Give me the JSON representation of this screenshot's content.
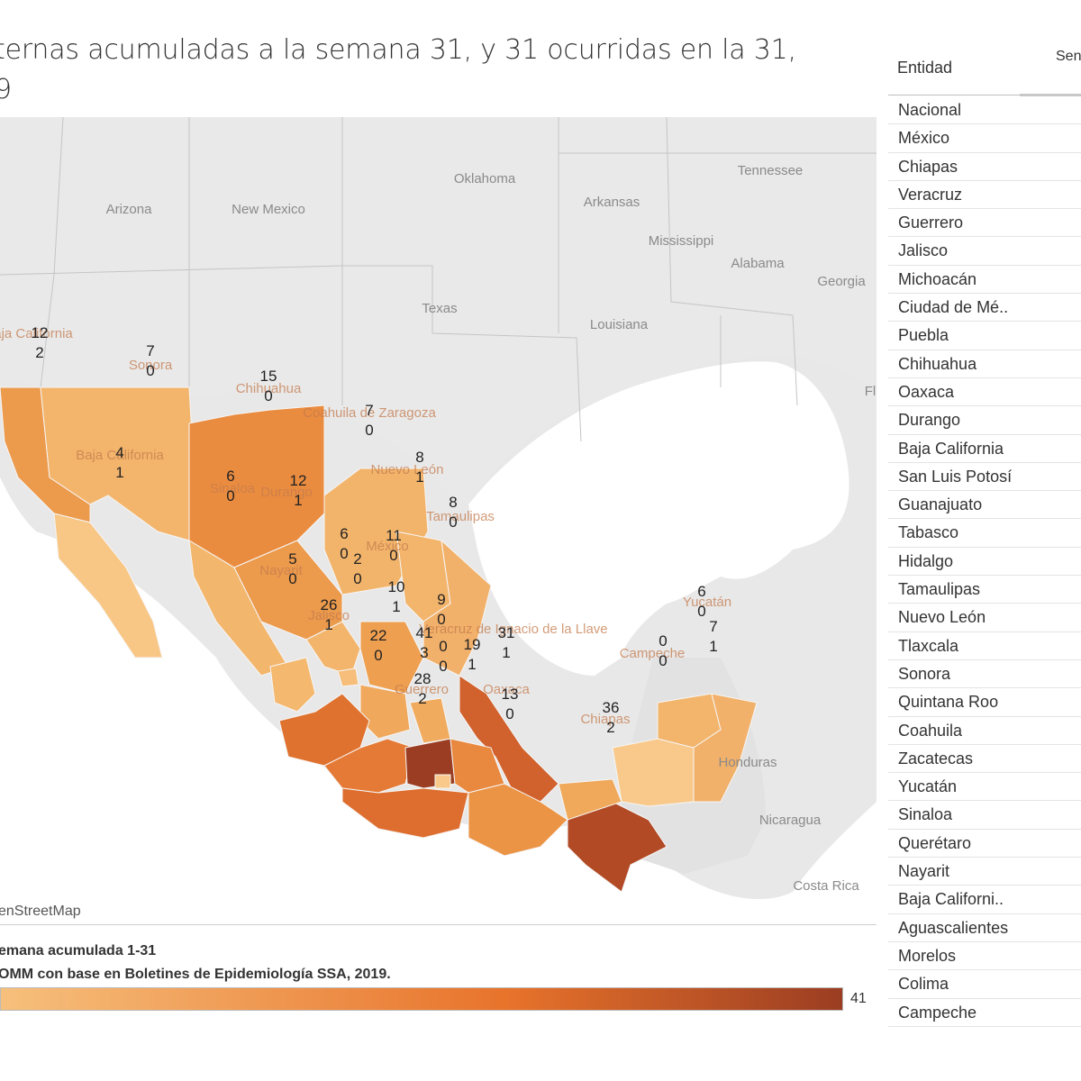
{
  "header": {
    "title": "ternas acumuladas a la semana 31, y 31 ocurridas en la 31,\n9"
  },
  "map": {
    "attribution": "enStreetMap",
    "us_states": [
      "Arizona",
      "New Mexico",
      "Oklahoma",
      "Arkansas",
      "Tennessee",
      "Texas",
      "Mississippi",
      "Alabama",
      "Georgia",
      "Louisiana",
      "Fl"
    ],
    "central_america": [
      "Honduras",
      "Nicaragua",
      "Costa Rica"
    ],
    "mx_state_names": [
      "Baja California",
      "Baja California",
      "Sonora",
      "Chihuahua",
      "Coahuila de Zaragoza",
      "Nuevo León",
      "Durango",
      "Sinaloa",
      "Tamaulipas",
      "México",
      "Nayarit",
      "Jalisco",
      "Guerrero",
      "Oaxaca",
      "Chiapas",
      "Yucatán",
      "Campeche",
      "Veracruz de Ignacio de la Llave"
    ],
    "colors": {
      "min": "#f6c07c",
      "mid": "#e8732b",
      "max": "#9b3d22"
    },
    "state_values": [
      {
        "state": "Baja California",
        "acum": 12,
        "week31": 2
      },
      {
        "state": "Sonora",
        "acum": 7,
        "week31": 0
      },
      {
        "state": "Chihuahua",
        "acum": 15,
        "week31": 0
      },
      {
        "state": "Coahuila",
        "acum": 7,
        "week31": 0
      },
      {
        "state": "Baja California Sur",
        "acum": 4,
        "week31": 1
      },
      {
        "state": "Nuevo León",
        "acum": 8,
        "week31": 1
      },
      {
        "state": "Sinaloa",
        "acum": 6,
        "week31": 0
      },
      {
        "state": "Durango",
        "acum": 12,
        "week31": 1
      },
      {
        "state": "Tamaulipas",
        "acum": 8,
        "week31": 0
      },
      {
        "state": "Zacatecas",
        "acum": 6,
        "week31": 0
      },
      {
        "state": "San Luis Potosí",
        "acum": 11,
        "week31": 0
      },
      {
        "state": "Aguascalientes",
        "acum": 2,
        "week31": 0
      },
      {
        "state": "Nayarit",
        "acum": 5,
        "week31": 0
      },
      {
        "state": "Guanajuato",
        "acum": 10,
        "week31": 1
      },
      {
        "state": "Querétaro",
        "acum": 9,
        "week31": 0
      },
      {
        "state": "Jalisco",
        "acum": 26,
        "week31": 1
      },
      {
        "state": "Hidalgo",
        "acum": 31,
        "week31": 1
      },
      {
        "state": "Michoacán",
        "acum": 22,
        "week31": 0
      },
      {
        "state": "México",
        "acum": 41,
        "week31": 3
      },
      {
        "state": "Ciudad de México",
        "acum": 0,
        "week31": 0
      },
      {
        "state": "Puebla",
        "acum": 19,
        "week31": 1
      },
      {
        "state": "Guerrero",
        "acum": 28,
        "week31": 2
      },
      {
        "state": "Oaxaca",
        "acum": 13,
        "week31": 0
      },
      {
        "state": "Chiapas",
        "acum": 36,
        "week31": 2
      },
      {
        "state": "Campeche",
        "acum": 0,
        "week31": 0
      },
      {
        "state": "Yucatán",
        "acum": 6,
        "week31": 0
      },
      {
        "state": "Quintana Roo",
        "acum": 7,
        "week31": 1
      }
    ]
  },
  "legend": {
    "title": "emana acumulada 1-31",
    "source": "OMM con base en Boletines de Epidemiología SSA, 2019.",
    "max_label": "41"
  },
  "table": {
    "header_entidad": "Entidad",
    "header_second": "Sen",
    "rows": [
      "Nacional",
      "México",
      "Chiapas",
      "Veracruz",
      "Guerrero",
      "Jalisco",
      "Michoacán",
      "Ciudad de Mé..",
      "Puebla",
      "Chihuahua",
      "Oaxaca",
      "Durango",
      "Baja California",
      "San Luis Potosí",
      "Guanajuato",
      "Tabasco",
      "Hidalgo",
      "Tamaulipas",
      "Nuevo León",
      "Tlaxcala",
      "Sonora",
      "Quintana Roo",
      "Coahuila",
      "Zacatecas",
      "Yucatán",
      "Sinaloa",
      "Querétaro",
      "Nayarit",
      "Baja Californi..",
      "Aguascalientes",
      "Morelos",
      "Colima",
      "Campeche"
    ]
  }
}
